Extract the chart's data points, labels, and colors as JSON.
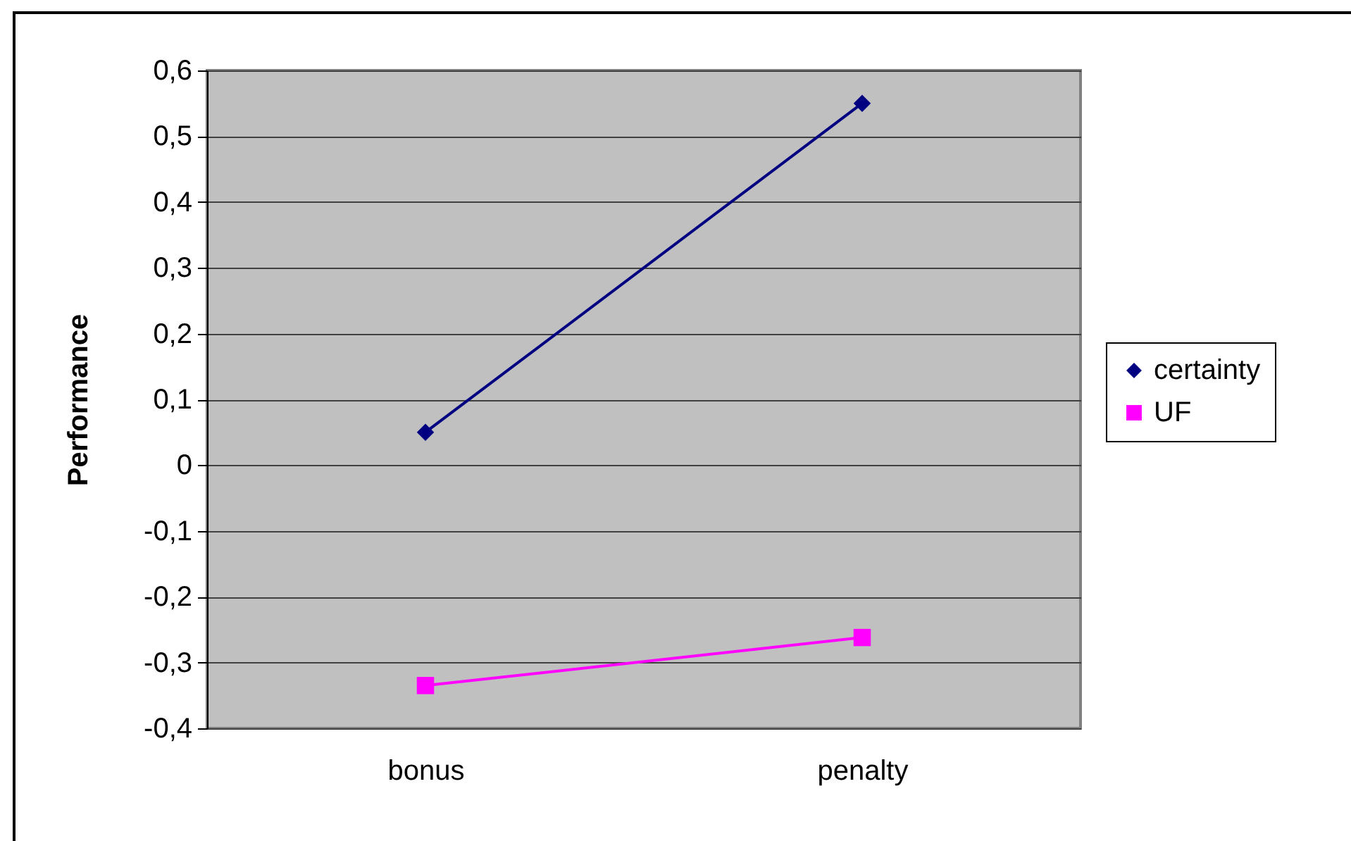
{
  "chart_data": {
    "type": "line",
    "ylabel": "Performance",
    "categories": [
      "bonus",
      "penalty"
    ],
    "series": [
      {
        "name": "certainty",
        "color": "#000080",
        "marker": "diamond",
        "values": [
          0.05,
          0.55
        ]
      },
      {
        "name": "UF",
        "color": "#ff00ff",
        "marker": "square",
        "values": [
          -0.335,
          -0.262
        ]
      }
    ],
    "ylim": [
      -0.4,
      0.6
    ],
    "yticks": [
      {
        "value": -0.4,
        "label": "-0,4"
      },
      {
        "value": -0.3,
        "label": "-0,3"
      },
      {
        "value": -0.2,
        "label": "-0,2"
      },
      {
        "value": -0.1,
        "label": "-0,1"
      },
      0,
      {
        "value": 0.1,
        "label": "0,1"
      },
      {
        "value": 0.2,
        "label": "0,2"
      },
      {
        "value": 0.3,
        "label": "0,3"
      },
      {
        "value": 0.4,
        "label": "0,4"
      },
      {
        "value": 0.5,
        "label": "0,5"
      },
      {
        "value": 0.6,
        "label": "0,6"
      }
    ],
    "grid": "y",
    "legend": "right"
  }
}
